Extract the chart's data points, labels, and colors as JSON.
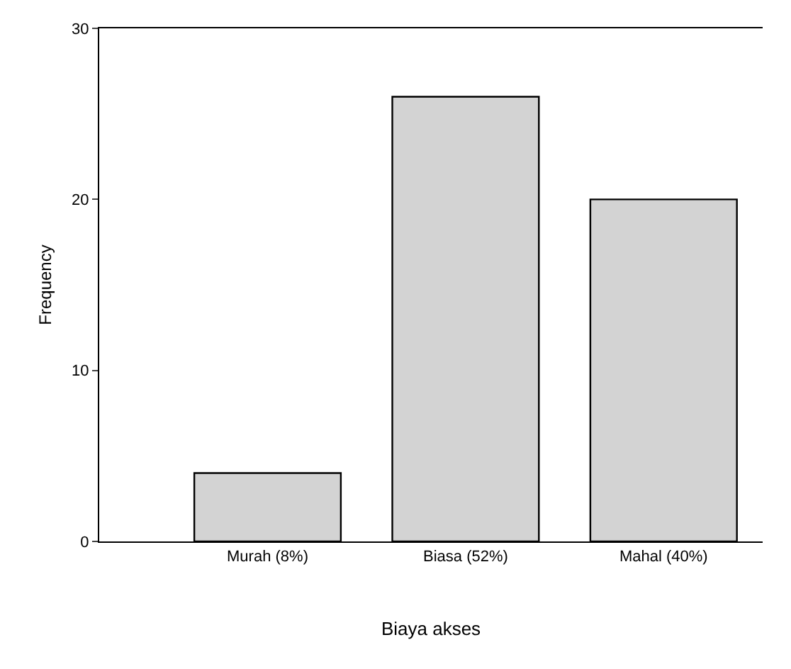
{
  "chart_data": {
    "type": "bar",
    "categories": [
      "Murah (8%)",
      "Biasa (52%)",
      "Mahal (40%)"
    ],
    "values": [
      4,
      26,
      20
    ],
    "color": "#d3d3d3",
    "ylim": [
      0,
      30
    ],
    "yticks": [
      0,
      10,
      20,
      30
    ],
    "grid": false,
    "xlabel": "Biaya akses",
    "ylabel": "Frequency"
  }
}
